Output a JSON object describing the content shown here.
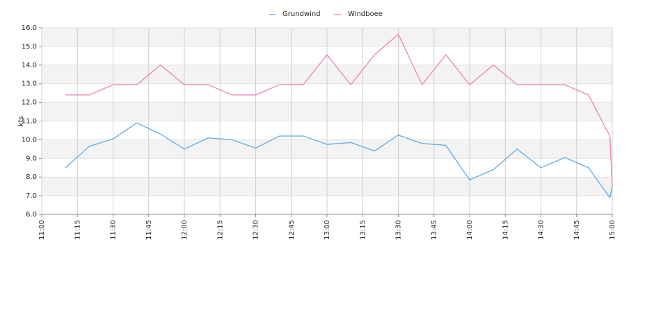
{
  "chart_data": {
    "type": "line",
    "ylabel": "kts",
    "x": [
      "11:10",
      "11:20",
      "11:30",
      "11:40",
      "11:50",
      "12:00",
      "12:10",
      "12:20",
      "12:30",
      "12:40",
      "12:50",
      "13:00",
      "13:10",
      "13:20",
      "13:30",
      "13:40",
      "13:50",
      "14:00",
      "14:10",
      "14:20",
      "14:30",
      "14:40",
      "14:50",
      "14:59",
      "15:00"
    ],
    "series": [
      {
        "name": "Grundwind",
        "color": "#6aaee8",
        "values": [
          8.5,
          9.65,
          10.05,
          10.9,
          10.3,
          9.5,
          10.1,
          10.0,
          9.55,
          10.2,
          10.2,
          9.75,
          9.85,
          9.4,
          10.25,
          9.8,
          9.7,
          7.85,
          8.4,
          9.5,
          8.5,
          9.05,
          8.5,
          6.9,
          7.5
        ]
      },
      {
        "name": "Windboee",
        "color": "#ee88bb",
        "values": [
          12.4,
          12.4,
          12.95,
          12.95,
          14.0,
          12.95,
          12.95,
          12.4,
          12.4,
          12.95,
          12.95,
          14.55,
          12.95,
          14.55,
          15.65,
          12.95,
          14.55,
          12.95,
          14.0,
          12.95,
          12.95,
          12.95,
          12.4,
          10.2,
          7.5
        ]
      }
    ],
    "xlim": [
      "11:00",
      "15:00"
    ],
    "xticks": [
      "11:00",
      "11:15",
      "11:30",
      "11:45",
      "12:00",
      "12:15",
      "12:30",
      "12:45",
      "13:00",
      "13:15",
      "13:30",
      "13:45",
      "14:00",
      "14:15",
      "14:30",
      "14:45",
      "15:00"
    ],
    "ylim": [
      6,
      16
    ],
    "yticks": [
      {
        "value": 6,
        "label": "6.0"
      },
      {
        "value": 7,
        "label": "7.0"
      },
      {
        "value": 8,
        "label": "8.0"
      },
      {
        "value": 9,
        "label": "9.0"
      },
      {
        "value": 10,
        "label": "10.0"
      },
      {
        "value": 11,
        "label": "11.0"
      },
      {
        "value": 12,
        "label": "12.0"
      },
      {
        "value": 13,
        "label": "13.0"
      },
      {
        "value": 14,
        "label": "14.0"
      },
      {
        "value": 15,
        "label": "15.0"
      },
      {
        "value": 16,
        "label": "16.0"
      }
    ],
    "grid": true,
    "legend": "top"
  }
}
